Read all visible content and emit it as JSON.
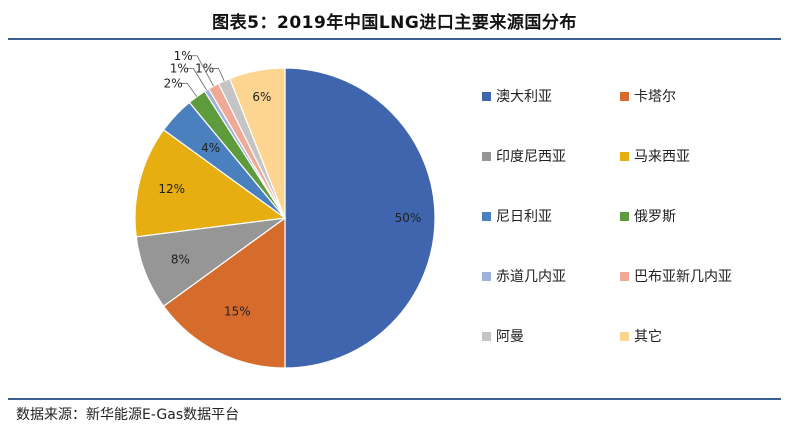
{
  "title": "图表5：2019年中国LNG进口主要来源国分布",
  "source": "数据来源：新华能源E-Gas数据平台",
  "chart_data": {
    "type": "pie",
    "title": "图表5：2019年中国LNG进口主要来源国分布",
    "legend_position": "right",
    "unit": "%",
    "start_angle_deg": 0,
    "direction": "clockwise",
    "slices": [
      {
        "name": "澳大利亚",
        "value": 50,
        "label": "50%",
        "color": "#3f65ae"
      },
      {
        "name": "卡塔尔",
        "value": 15,
        "label": "15%",
        "color": "#d56c2c"
      },
      {
        "name": "印度尼西亚",
        "value": 8,
        "label": "8%",
        "color": "#969696"
      },
      {
        "name": "马来西亚",
        "value": 12,
        "label": "12%",
        "color": "#e6ae10"
      },
      {
        "name": "尼日利亚",
        "value": 4,
        "label": "4%",
        "color": "#4b80bf"
      },
      {
        "name": "俄罗斯",
        "value": 2,
        "label": "2%",
        "color": "#5e9b3c"
      },
      {
        "name": "赤道几内亚",
        "value": 0.5,
        "label": "1%",
        "color": "#9fb2dc"
      },
      {
        "name": "巴布亚新几内亚",
        "value": 1.2,
        "label": "1%",
        "color": "#f0a995"
      },
      {
        "name": "阿曼",
        "value": 1.3,
        "label": "1%",
        "color": "#c4c4c4"
      },
      {
        "name": "其它",
        "value": 6,
        "label": "6%",
        "color": "#fdd590"
      }
    ]
  }
}
